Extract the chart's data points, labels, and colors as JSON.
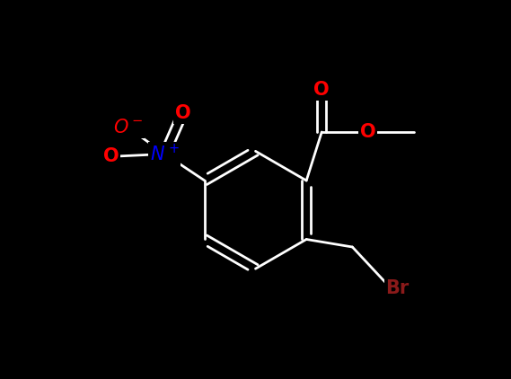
{
  "bg_color": "#000000",
  "bond_color": "#ffffff",
  "atom_colors": {
    "O": "#ff0000",
    "N": "#0000ff",
    "Br": "#8b1a1a",
    "C": "#ffffff"
  },
  "figsize": [
    5.69,
    4.22
  ],
  "dpi": 100,
  "lw": 2.0,
  "fontsize": 15
}
